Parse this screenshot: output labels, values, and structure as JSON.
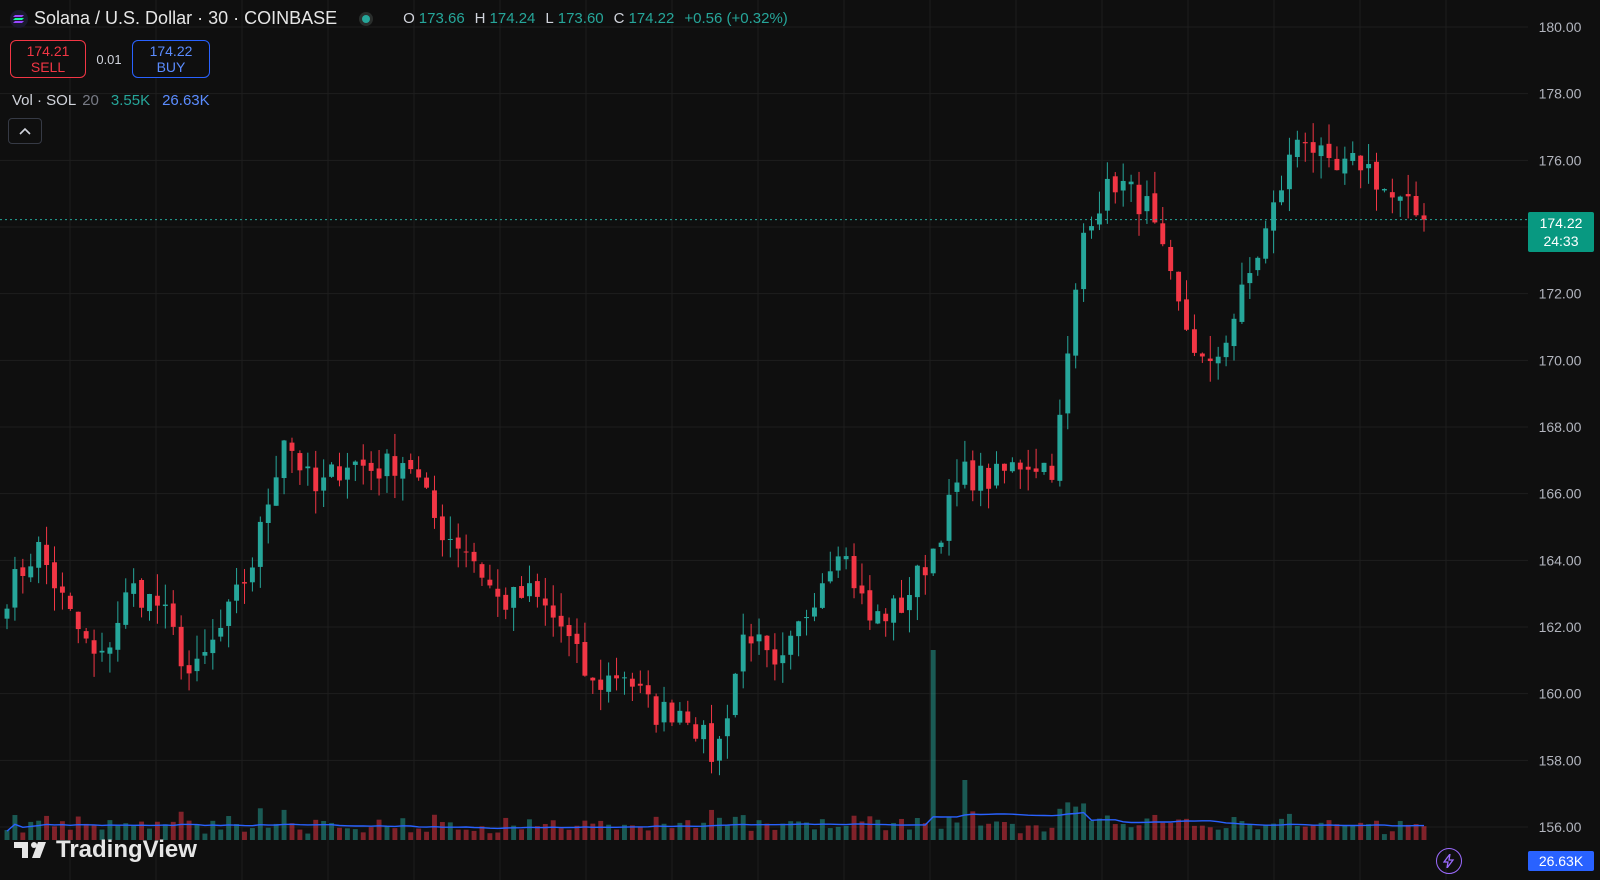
{
  "header": {
    "symbol_title": "Solana / U.S. Dollar · 30 · COINBASE",
    "ohlc": {
      "o_label": "O",
      "o": "173.66",
      "h_label": "H",
      "h": "174.24",
      "l_label": "L",
      "l": "173.60",
      "c_label": "C",
      "c": "174.22",
      "change": "+0.56 (+0.32%)"
    }
  },
  "trade": {
    "sell_price": "174.21",
    "sell_label": "SELL",
    "spread": "0.01",
    "buy_price": "174.22",
    "buy_label": "BUY"
  },
  "volume_legend": {
    "label": "Vol · SOL",
    "length": "20",
    "volume": "3.55K",
    "volume_ma": "26.63K"
  },
  "price_tag": {
    "price": "174.22",
    "countdown": "24:33"
  },
  "volume_tag": "26.63K",
  "logo_text": "TradingView",
  "colors": {
    "background": "#0f0f0f",
    "up": "#26a69a",
    "down": "#f23645",
    "grid": "#1e1e1e",
    "volume_ma": "#2962ff"
  },
  "chart_data": {
    "type": "candlestick",
    "interval": "30",
    "y_axis": {
      "ticks": [
        "156.00",
        "158.00",
        "160.00",
        "162.00",
        "164.00",
        "166.00",
        "168.00",
        "170.00",
        "172.00",
        "174.00",
        "176.00",
        "178.00",
        "180.00"
      ],
      "ylim": [
        155.5,
        180.2
      ],
      "position": "right"
    },
    "current_price": 174.22,
    "close_waypoints": [
      163.0,
      164.4,
      162.4,
      160.8,
      163.2,
      162.6,
      160.4,
      162.0,
      164.0,
      167.8,
      166.0,
      167.0,
      166.7,
      167.1,
      165.0,
      164.3,
      162.7,
      163.0,
      162.0,
      160.2,
      160.7,
      159.4,
      159.6,
      158.0,
      162.1,
      160.4,
      162.6,
      164.6,
      162.2,
      162.6,
      164.2,
      166.6,
      166.4,
      167.0,
      166.8,
      174.2,
      175.4,
      174.6,
      171.6,
      169.5,
      171.7,
      174.2,
      177.0,
      175.5,
      176.0,
      174.8,
      174.22
    ]
  }
}
